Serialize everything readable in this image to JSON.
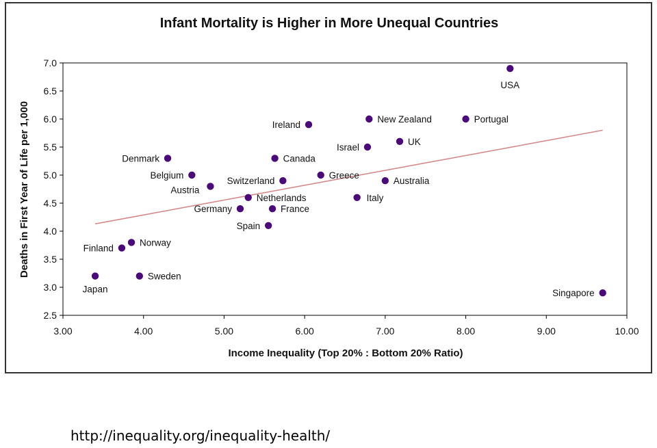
{
  "chart_data": {
    "type": "scatter",
    "title": "Infant Mortality is Higher in More Unequal Countries",
    "xlabel": "Income Inequality (Top 20% : Bottom 20%  Ratio)",
    "ylabel": "Deaths in First Year of Life per 1,000",
    "xlim": [
      3.0,
      10.0
    ],
    "ylim": [
      2.5,
      7.0
    ],
    "xticks": [
      "3.00",
      "4.00",
      "5.00",
      "6.00",
      "7.00",
      "8.00",
      "9.00",
      "10.00"
    ],
    "yticks": [
      "2.5",
      "3.0",
      "3.5",
      "4.0",
      "4.5",
      "5.0",
      "5.5",
      "6.0",
      "6.5",
      "7.0"
    ],
    "grid": false,
    "point_color": "#4b0a7a",
    "trendline_color": "#d48a8a",
    "trendline": {
      "x": [
        3.4,
        9.7
      ],
      "y": [
        4.13,
        5.8
      ]
    },
    "points": [
      {
        "label": "Japan",
        "x": 3.4,
        "y": 3.2
      },
      {
        "label": "Finland",
        "x": 3.73,
        "y": 3.7
      },
      {
        "label": "Norway",
        "x": 3.85,
        "y": 3.8
      },
      {
        "label": "Sweden",
        "x": 3.95,
        "y": 3.2
      },
      {
        "label": "Denmark",
        "x": 4.3,
        "y": 5.3
      },
      {
        "label": "Belgium",
        "x": 4.6,
        "y": 5.0
      },
      {
        "label": "Austria",
        "x": 4.83,
        "y": 4.8
      },
      {
        "label": "Germany",
        "x": 5.2,
        "y": 4.4
      },
      {
        "label": "Netherlands",
        "x": 5.3,
        "y": 4.6
      },
      {
        "label": "Spain",
        "x": 5.55,
        "y": 4.1
      },
      {
        "label": "France",
        "x": 5.6,
        "y": 4.4
      },
      {
        "label": "Canada",
        "x": 5.63,
        "y": 5.3
      },
      {
        "label": "Switzerland",
        "x": 5.73,
        "y": 4.9
      },
      {
        "label": "Ireland",
        "x": 6.05,
        "y": 5.9
      },
      {
        "label": "Greece",
        "x": 6.2,
        "y": 5.0
      },
      {
        "label": "Italy",
        "x": 6.65,
        "y": 4.6
      },
      {
        "label": "Israel",
        "x": 6.78,
        "y": 5.5
      },
      {
        "label": "New Zealand",
        "x": 6.8,
        "y": 6.0
      },
      {
        "label": "Australia",
        "x": 7.0,
        "y": 4.9
      },
      {
        "label": "UK",
        "x": 7.18,
        "y": 5.6
      },
      {
        "label": "Portugal",
        "x": 8.0,
        "y": 6.0
      },
      {
        "label": "USA",
        "x": 8.55,
        "y": 6.9
      },
      {
        "label": "Singapore",
        "x": 9.7,
        "y": 2.9
      }
    ]
  },
  "source_url": "http://inequality.org/inequality-health/"
}
